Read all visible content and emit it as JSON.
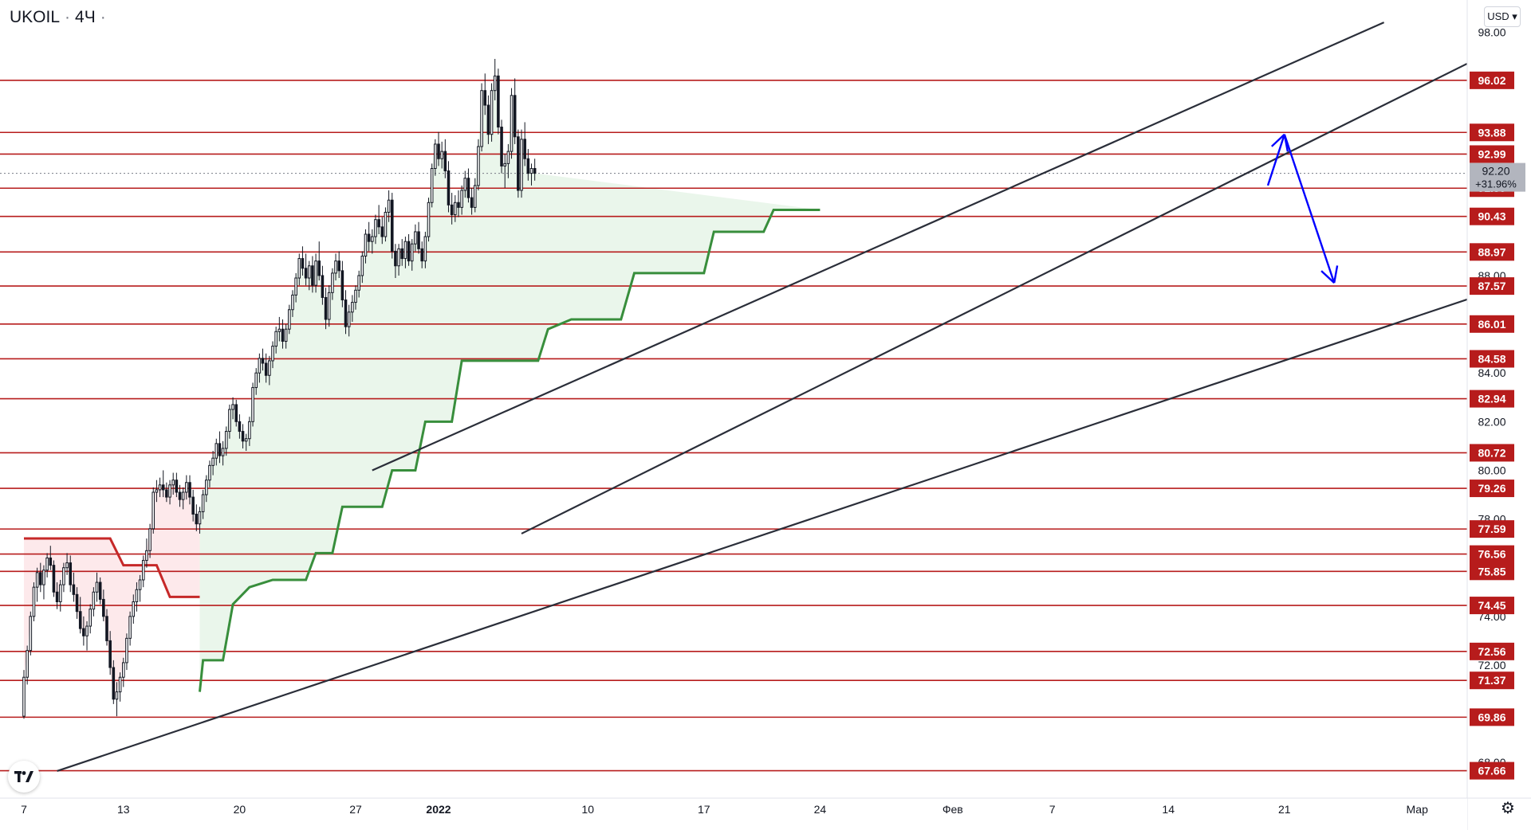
{
  "header": {
    "symbol": "UKOIL",
    "interval": "4Ч",
    "currency_button": "USD"
  },
  "colors": {
    "level_line": "#b71c1c",
    "level_label_bg": "#b71c1c",
    "trend_line": "#2a2e39",
    "supertrend_up": "#388e3c",
    "supertrend_down": "#c62828",
    "fill_up": "#e8f5e9",
    "fill_down": "#fde7e9",
    "forecast_arrow": "#0000ff",
    "candle": "#131722",
    "price_label_bg": "#b2b5be"
  },
  "icons": {
    "logo": "tradingview-logo-icon",
    "settings": "gear-icon"
  },
  "chart_data": {
    "type": "candlestick",
    "symbol": "UKOIL",
    "interval": "4Ч",
    "ylim": [
      66.6,
      98.6
    ],
    "y_ticks": [
      "98.00",
      "88.00",
      "84.00",
      "82.00",
      "80.00",
      "78.00",
      "74.00",
      "72.00",
      "68.00"
    ],
    "x_ticks": [
      "7",
      "13",
      "20",
      "27",
      "2022",
      "10",
      "17",
      "24",
      "Фев",
      "7",
      "14",
      "21",
      "Мар"
    ],
    "levels": [
      "96.02",
      "93.88",
      "92.99",
      "91.59",
      "90.43",
      "88.97",
      "87.57",
      "86.01",
      "84.58",
      "82.94",
      "80.72",
      "79.26",
      "77.59",
      "76.56",
      "75.85",
      "74.45",
      "72.56",
      "71.37",
      "69.86",
      "67.66"
    ],
    "last_price": "92.20",
    "change_percent": "+31.96%",
    "bars_per_day": 5,
    "first_day_of_month": "2021-12-07",
    "candles": [
      [
        69.9,
        71.8,
        69.8,
        71.5
      ],
      [
        71.5,
        72.8,
        71.2,
        72.6
      ],
      [
        72.6,
        74.2,
        72.4,
        74.0
      ],
      [
        74.0,
        75.4,
        73.8,
        75.2
      ],
      [
        75.2,
        76.0,
        74.6,
        75.8
      ],
      [
        75.8,
        76.2,
        75.0,
        75.3
      ],
      [
        75.3,
        76.1,
        74.7,
        75.9
      ],
      [
        75.9,
        76.6,
        75.6,
        76.4
      ],
      [
        76.4,
        76.9,
        75.9,
        76.1
      ],
      [
        76.1,
        76.3,
        74.8,
        75.0
      ],
      [
        75.0,
        75.4,
        74.3,
        74.6
      ],
      [
        74.6,
        75.5,
        74.2,
        75.3
      ],
      [
        75.3,
        76.2,
        75.0,
        76.0
      ],
      [
        76.0,
        76.6,
        75.7,
        76.2
      ],
      [
        76.2,
        76.5,
        75.0,
        75.3
      ],
      [
        75.3,
        75.8,
        74.6,
        74.9
      ],
      [
        74.9,
        75.2,
        73.9,
        74.2
      ],
      [
        74.2,
        74.8,
        73.3,
        73.5
      ],
      [
        73.5,
        74.0,
        72.8,
        73.2
      ],
      [
        73.2,
        73.8,
        72.6,
        73.6
      ],
      [
        73.6,
        74.5,
        73.3,
        74.3
      ],
      [
        74.3,
        75.2,
        74.0,
        75.0
      ],
      [
        75.0,
        75.8,
        74.6,
        75.4
      ],
      [
        75.4,
        75.6,
        74.5,
        74.7
      ],
      [
        74.7,
        75.1,
        73.8,
        74.0
      ],
      [
        74.0,
        74.3,
        72.8,
        73.0
      ],
      [
        73.0,
        73.4,
        71.6,
        71.9
      ],
      [
        71.9,
        72.2,
        70.4,
        70.6
      ],
      [
        70.6,
        71.3,
        69.9,
        70.9
      ],
      [
        70.9,
        71.7,
        70.5,
        71.5
      ],
      [
        71.5,
        72.3,
        71.1,
        72.1
      ],
      [
        72.1,
        73.3,
        71.8,
        73.1
      ],
      [
        73.1,
        74.2,
        72.8,
        74.0
      ],
      [
        74.0,
        74.9,
        73.7,
        74.6
      ],
      [
        74.6,
        75.4,
        74.2,
        75.1
      ],
      [
        75.1,
        75.7,
        74.6,
        75.5
      ],
      [
        75.5,
        76.5,
        75.2,
        76.3
      ],
      [
        76.3,
        77.2,
        76.0,
        76.7
      ],
      [
        76.7,
        77.8,
        76.4,
        77.6
      ],
      [
        77.6,
        79.3,
        77.4,
        79.1
      ],
      [
        79.1,
        79.6,
        78.7,
        79.2
      ],
      [
        79.2,
        79.7,
        78.9,
        79.4
      ],
      [
        79.4,
        80.0,
        78.9,
        79.2
      ],
      [
        79.2,
        79.5,
        78.7,
        78.9
      ],
      [
        78.9,
        79.6,
        78.6,
        79.4
      ],
      [
        79.4,
        79.9,
        79.0,
        79.6
      ],
      [
        79.6,
        79.9,
        78.9,
        79.1
      ],
      [
        79.1,
        79.4,
        78.5,
        78.8
      ],
      [
        78.8,
        79.3,
        78.4,
        79.1
      ],
      [
        79.1,
        79.8,
        78.8,
        79.5
      ],
      [
        79.5,
        79.8,
        78.6,
        78.9
      ],
      [
        78.9,
        79.2,
        77.9,
        78.2
      ],
      [
        78.2,
        78.6,
        77.5,
        77.8
      ],
      [
        77.8,
        78.5,
        77.4,
        78.3
      ],
      [
        78.3,
        79.2,
        78.0,
        79.0
      ],
      [
        79.0,
        79.8,
        78.7,
        79.6
      ],
      [
        79.6,
        80.4,
        79.3,
        80.2
      ],
      [
        80.2,
        80.8,
        79.8,
        80.5
      ],
      [
        80.5,
        81.3,
        80.2,
        81.1
      ],
      [
        81.1,
        81.6,
        80.3,
        80.6
      ],
      [
        80.6,
        81.2,
        80.2,
        80.9
      ],
      [
        80.9,
        81.8,
        80.6,
        81.6
      ],
      [
        81.6,
        82.7,
        81.3,
        82.5
      ],
      [
        82.5,
        83.0,
        82.1,
        82.7
      ],
      [
        82.7,
        82.9,
        81.8,
        82.0
      ],
      [
        82.0,
        82.3,
        81.3,
        81.6
      ],
      [
        81.6,
        81.9,
        80.9,
        81.2
      ],
      [
        81.2,
        81.5,
        80.8,
        81.3
      ],
      [
        81.3,
        82.2,
        81.0,
        82.0
      ],
      [
        82.0,
        83.6,
        81.8,
        83.4
      ],
      [
        83.4,
        84.2,
        83.1,
        84.0
      ],
      [
        84.0,
        84.8,
        83.6,
        84.6
      ],
      [
        84.6,
        85.0,
        84.1,
        84.4
      ],
      [
        84.4,
        84.8,
        83.6,
        83.9
      ],
      [
        83.9,
        84.7,
        83.5,
        84.5
      ],
      [
        84.5,
        85.3,
        84.2,
        85.1
      ],
      [
        85.1,
        85.9,
        84.8,
        85.7
      ],
      [
        85.7,
        86.3,
        85.3,
        85.8
      ],
      [
        85.8,
        86.2,
        85.0,
        85.3
      ],
      [
        85.3,
        86.0,
        85.0,
        85.8
      ],
      [
        85.8,
        86.8,
        85.6,
        86.6
      ],
      [
        86.6,
        87.4,
        86.3,
        87.2
      ],
      [
        87.2,
        88.1,
        86.9,
        87.9
      ],
      [
        87.9,
        88.9,
        87.6,
        88.7
      ],
      [
        88.7,
        89.2,
        88.0,
        88.3
      ],
      [
        88.3,
        88.9,
        87.6,
        87.9
      ],
      [
        87.9,
        88.6,
        87.4,
        88.4
      ],
      [
        88.4,
        88.8,
        87.3,
        87.6
      ],
      [
        87.6,
        88.9,
        87.3,
        88.6
      ],
      [
        88.6,
        89.4,
        87.8,
        88.0
      ],
      [
        88.0,
        88.4,
        86.8,
        87.1
      ],
      [
        87.1,
        87.5,
        85.8,
        86.2
      ],
      [
        86.2,
        87.6,
        85.9,
        87.3
      ],
      [
        87.3,
        88.3,
        87.0,
        88.1
      ],
      [
        88.1,
        88.9,
        87.8,
        88.6
      ],
      [
        88.6,
        89.0,
        87.9,
        88.2
      ],
      [
        88.2,
        88.6,
        86.7,
        87.0
      ],
      [
        87.0,
        87.4,
        85.6,
        85.9
      ],
      [
        85.9,
        86.8,
        85.5,
        86.5
      ],
      [
        86.5,
        87.2,
        86.1,
        86.9
      ],
      [
        86.9,
        87.6,
        86.6,
        87.4
      ],
      [
        87.4,
        88.2,
        87.1,
        88.0
      ],
      [
        88.0,
        89.0,
        87.7,
        88.8
      ],
      [
        88.8,
        89.9,
        88.5,
        89.7
      ],
      [
        89.7,
        90.2,
        89.0,
        89.4
      ],
      [
        89.4,
        89.9,
        88.9,
        89.6
      ],
      [
        89.6,
        90.5,
        89.3,
        90.3
      ],
      [
        90.3,
        90.9,
        89.7,
        90.0
      ],
      [
        90.0,
        90.4,
        89.3,
        89.6
      ],
      [
        89.6,
        90.8,
        89.4,
        90.6
      ],
      [
        90.6,
        91.5,
        90.2,
        91.1
      ],
      [
        91.1,
        91.4,
        88.7,
        89.0
      ],
      [
        89.0,
        89.3,
        87.9,
        88.4
      ],
      [
        88.4,
        89.3,
        88.0,
        89.1
      ],
      [
        89.1,
        89.5,
        88.4,
        88.7
      ],
      [
        88.7,
        89.6,
        88.3,
        89.4
      ],
      [
        89.4,
        89.7,
        88.4,
        88.6
      ],
      [
        88.6,
        89.5,
        88.2,
        89.3
      ],
      [
        89.3,
        90.1,
        89.0,
        89.8
      ],
      [
        89.8,
        90.2,
        88.9,
        89.1
      ],
      [
        89.1,
        89.4,
        88.3,
        88.6
      ],
      [
        88.6,
        89.8,
        88.3,
        89.6
      ],
      [
        89.6,
        91.2,
        89.4,
        91.0
      ],
      [
        91.0,
        92.6,
        90.8,
        92.4
      ],
      [
        92.4,
        93.6,
        92.1,
        93.4
      ],
      [
        93.4,
        93.9,
        92.5,
        92.8
      ],
      [
        92.8,
        93.5,
        92.4,
        93.1
      ],
      [
        93.1,
        93.6,
        92.0,
        92.3
      ],
      [
        92.3,
        92.7,
        90.6,
        90.9
      ],
      [
        90.9,
        91.4,
        90.1,
        90.5
      ],
      [
        90.5,
        91.3,
        90.2,
        91.0
      ],
      [
        91.0,
        91.5,
        90.4,
        90.8
      ],
      [
        90.8,
        91.7,
        90.5,
        91.5
      ],
      [
        91.5,
        92.3,
        91.2,
        92.0
      ],
      [
        92.0,
        92.4,
        91.0,
        91.2
      ],
      [
        91.2,
        91.6,
        90.5,
        90.8
      ],
      [
        90.8,
        92.0,
        90.6,
        91.7
      ],
      [
        91.7,
        93.6,
        91.5,
        93.3
      ],
      [
        93.3,
        95.9,
        93.1,
        95.6
      ],
      [
        95.6,
        96.3,
        94.6,
        95.0
      ],
      [
        95.0,
        95.4,
        93.4,
        93.8
      ],
      [
        93.8,
        95.9,
        93.5,
        95.6
      ],
      [
        95.6,
        96.9,
        95.2,
        96.2
      ],
      [
        96.2,
        96.5,
        93.8,
        94.1
      ],
      [
        94.1,
        94.4,
        92.2,
        92.5
      ],
      [
        92.5,
        93.0,
        91.6,
        92.6
      ],
      [
        92.6,
        93.4,
        92.0,
        93.1
      ],
      [
        93.1,
        95.7,
        92.8,
        95.4
      ],
      [
        95.4,
        96.1,
        93.4,
        93.7
      ],
      [
        93.7,
        94.0,
        91.2,
        91.5
      ],
      [
        91.5,
        94.0,
        91.2,
        93.6
      ],
      [
        93.6,
        94.3,
        92.5,
        92.8
      ],
      [
        92.8,
        93.2,
        91.9,
        92.2
      ],
      [
        92.2,
        92.6,
        91.7,
        92.4
      ],
      [
        92.4,
        92.8,
        91.9,
        92.2
      ]
    ],
    "supertrend_down": [
      [
        0,
        77.2
      ],
      [
        26,
        77.2
      ],
      [
        30,
        76.1
      ],
      [
        40,
        76.1
      ],
      [
        44,
        74.8
      ],
      [
        53,
        74.8
      ]
    ],
    "supertrend_up": [
      [
        53,
        70.9
      ],
      [
        54,
        72.2
      ],
      [
        60,
        72.2
      ],
      [
        63,
        74.5
      ],
      [
        68,
        75.2
      ],
      [
        75,
        75.5
      ],
      [
        85,
        75.5
      ],
      [
        88,
        76.6
      ],
      [
        93,
        76.6
      ],
      [
        96,
        78.5
      ],
      [
        108,
        78.5
      ],
      [
        111,
        80.0
      ],
      [
        118,
        80.0
      ],
      [
        121,
        82.0
      ],
      [
        129,
        82.0
      ],
      [
        132,
        84.5
      ],
      [
        155,
        84.5
      ],
      [
        158,
        85.8
      ],
      [
        165,
        86.2
      ],
      [
        180,
        86.2
      ],
      [
        184,
        88.1
      ],
      [
        205,
        88.1
      ],
      [
        208,
        89.8
      ],
      [
        223,
        89.8
      ],
      [
        226,
        90.7
      ],
      [
        240,
        90.7
      ]
    ],
    "trendlines": [
      {
        "from": [
          "2021-12-28",
          80.0
        ],
        "to": [
          "2022-02-27",
          98.4
        ]
      },
      {
        "from": [
          "2022-01-06",
          77.4
        ],
        "to": [
          "2022-03-04",
          96.7
        ]
      },
      {
        "from": [
          "2021-12-09",
          67.65
        ],
        "to": [
          "2022-03-07",
          87.7
        ]
      }
    ],
    "forecast_arrows": [
      {
        "from": [
          "2022-02-20",
          91.7
        ],
        "to": [
          "2022-02-21",
          93.8
        ]
      },
      {
        "from": [
          "2022-02-21",
          93.8
        ],
        "to": [
          "2022-02-24",
          87.7
        ]
      }
    ]
  }
}
